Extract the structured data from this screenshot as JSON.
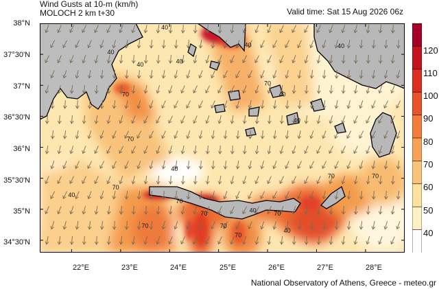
{
  "header": {
    "title_line1": "Wind Gusts at 10-m (km/h)",
    "title_line2": "MOLOCH 2 km t+30",
    "valid_time": "Valid time: Sat 15 Aug 2026 06z"
  },
  "footer": {
    "credit": "National Observatory of Athens, Greece - meteo.gr"
  },
  "axes": {
    "y_ticks": [
      "38°N",
      "37°30'N",
      "37°N",
      "36°30'N",
      "36°N",
      "35°30'N",
      "35°N",
      "34°30'N"
    ],
    "x_ticks": [
      "22°E",
      "23°E",
      "24°E",
      "25°E",
      "26°E",
      "27°E",
      "28°E"
    ]
  },
  "colorbar": {
    "labels": [
      "120",
      "110",
      "100",
      "90",
      "80",
      "70",
      "60",
      "50",
      "40"
    ],
    "colors": [
      "#a50026",
      "#c4121f",
      "#dc2e1e",
      "#e9532a",
      "#f27d3c",
      "#f6a258",
      "#fac478",
      "#fde19f",
      "#fff0c4",
      "#ffffff"
    ]
  },
  "contour_labels": [
    {
      "text": "40",
      "lon": 23.9,
      "lat": 37.9
    },
    {
      "text": "40",
      "lon": 23.4,
      "lat": 37.3
    },
    {
      "text": "40",
      "lon": 25.6,
      "lat": 37.62
    },
    {
      "text": "40",
      "lon": 27.5,
      "lat": 37.6
    },
    {
      "text": "40",
      "lon": 24.2,
      "lat": 37.35
    },
    {
      "text": "40",
      "lon": 26.3,
      "lat": 36.82
    },
    {
      "text": "40",
      "lon": 22.0,
      "lat": 35.2
    },
    {
      "text": "40",
      "lon": 24.1,
      "lat": 35.62
    },
    {
      "text": "40",
      "lon": 25.7,
      "lat": 34.95
    },
    {
      "text": "40",
      "lon": 26.4,
      "lat": 34.62
    },
    {
      "text": "70",
      "lon": 23.1,
      "lat": 36.82
    },
    {
      "text": "70",
      "lon": 23.2,
      "lat": 36.1
    },
    {
      "text": "70",
      "lon": 26.0,
      "lat": 37.0
    },
    {
      "text": "70",
      "lon": 22.9,
      "lat": 35.32
    },
    {
      "text": "70",
      "lon": 23.5,
      "lat": 34.7
    },
    {
      "text": "70",
      "lon": 24.2,
      "lat": 35.1
    },
    {
      "text": "70",
      "lon": 24.7,
      "lat": 34.9
    },
    {
      "text": "70",
      "lon": 25.1,
      "lat": 34.7
    },
    {
      "text": "70",
      "lon": 25.4,
      "lat": 34.55
    },
    {
      "text": "70",
      "lon": 26.2,
      "lat": 34.9
    },
    {
      "text": "70",
      "lon": 27.3,
      "lat": 35.5
    },
    {
      "text": "70",
      "lon": 28.2,
      "lat": 35.5
    },
    {
      "text": "40",
      "lon": 22.8,
      "lat": 37.5
    },
    {
      "text": "40",
      "lon": 26.6,
      "lat": 36.4
    }
  ]
}
